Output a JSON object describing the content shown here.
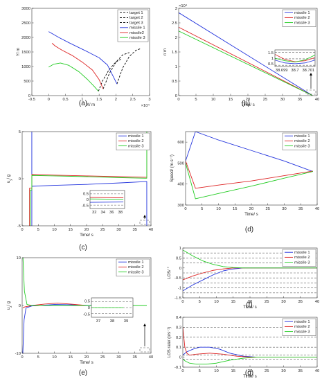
{
  "colors": {
    "missile_1": "#2233dd",
    "missile_2": "#dd2222",
    "missile_3": "#22cc22",
    "target": "#000000"
  },
  "captions": {
    "a": "(a)",
    "b": "(b)",
    "c": "(c)",
    "d": "(d)",
    "e": "(e)",
    "f": "(f)",
    "g": "(g)"
  },
  "chart_data": [
    {
      "id": "a",
      "type": "line",
      "xlabel": "X/ m",
      "ylabel": "Y/ m",
      "x_exponent": "×10⁴",
      "xlim": [
        -0.5,
        3
      ],
      "ylim": [
        0,
        3000
      ],
      "xticks": [
        -0.5,
        0,
        0.5,
        1,
        1.5,
        2,
        2.5,
        3
      ],
      "xtick_labels": [
        "-0.5",
        "0",
        "0.5",
        "1",
        "1.5",
        "2",
        "2.5",
        "3"
      ],
      "yticks": [
        0,
        500,
        1000,
        1500,
        2000,
        2500,
        3000
      ],
      "ytick_labels": [
        "0",
        "500",
        "1000",
        "1500",
        "2000",
        "2500",
        "3000"
      ],
      "legend": [
        "target 1",
        "target 2",
        "target 3",
        "missile 1",
        "missile2",
        "missile 3"
      ],
      "series": [
        {
          "name": "target 1",
          "style": "dash",
          "color_key": "target",
          "x": [
            2.03,
            2.2,
            2.4,
            2.6,
            2.75
          ],
          "y": [
            400,
            950,
            1350,
            1560,
            1620
          ]
        },
        {
          "name": "target 2",
          "style": "dash",
          "color_key": "target",
          "x": [
            1.62,
            1.8,
            2.0,
            2.2,
            2.4
          ],
          "y": [
            230,
            750,
            1150,
            1400,
            1480
          ]
        },
        {
          "name": "target 3",
          "style": "dash",
          "color_key": "target",
          "x": [
            1.48,
            1.6,
            1.8,
            2.0,
            2.15
          ],
          "y": [
            150,
            500,
            900,
            1160,
            1250
          ]
        },
        {
          "name": "missile 1",
          "style": "solid",
          "color_key": "missile_1",
          "x": [
            0,
            0.3,
            0.6,
            0.9,
            1.2,
            1.5,
            1.75,
            1.9,
            2.03
          ],
          "y": [
            2200,
            2000,
            1820,
            1650,
            1480,
            1300,
            1050,
            700,
            400
          ]
        },
        {
          "name": "missile2",
          "style": "solid",
          "color_key": "missile_2",
          "x": [
            0.1,
            0.2,
            0.4,
            0.7,
            1.0,
            1.3,
            1.5,
            1.62
          ],
          "y": [
            1800,
            1700,
            1560,
            1380,
            1150,
            880,
            550,
            230
          ]
        },
        {
          "name": "missile 3",
          "style": "solid",
          "color_key": "missile_3",
          "x": [
            0,
            0.15,
            0.35,
            0.6,
            0.9,
            1.15,
            1.35,
            1.48
          ],
          "y": [
            980,
            1080,
            1120,
            1040,
            820,
            560,
            320,
            150
          ]
        }
      ]
    },
    {
      "id": "b",
      "type": "line",
      "xlabel": "Time/ s",
      "ylabel": "r/ m",
      "y_exponent": "×10⁴",
      "xlim": [
        0,
        40
      ],
      "ylim": [
        0,
        3
      ],
      "xticks": [
        0,
        5,
        10,
        15,
        20,
        25,
        30,
        35,
        40
      ],
      "xtick_labels": [
        "0",
        "5",
        "10",
        "15",
        "20",
        "25",
        "30",
        "35",
        "40"
      ],
      "yticks": [
        0,
        0.5,
        1,
        1.5,
        2,
        2.5,
        3
      ],
      "ytick_labels": [
        "0",
        "0.5",
        "1",
        "1.5",
        "2",
        "2.5",
        "3"
      ],
      "legend": [
        "missile 1",
        "missile 2",
        "missile 3"
      ],
      "series": [
        {
          "name": "missile 1",
          "color_key": "missile_1",
          "x": [
            0,
            38.7
          ],
          "y": [
            2.85,
            0
          ]
        },
        {
          "name": "missile 2",
          "color_key": "missile_2",
          "x": [
            0,
            38.7
          ],
          "y": [
            2.35,
            0
          ]
        },
        {
          "name": "missile 3",
          "color_key": "missile_3",
          "x": [
            0,
            38.7
          ],
          "y": [
            2.22,
            0
          ]
        }
      ],
      "inset": {
        "xtick_labels": [
          "38.699",
          "38.7",
          "38.701"
        ],
        "ytick_labels": [
          "1.5",
          "1",
          "0.5"
        ],
        "xlim": [
          38.699,
          38.701
        ],
        "ylim": [
          0.4,
          1.7
        ],
        "thresholds": [
          1.5,
          1.0,
          0.5
        ],
        "series": [
          {
            "name": "missile 1",
            "color_key": "missile_1",
            "x": [
              38.699,
              38.6995,
              38.7,
              38.7005,
              38.701
            ],
            "y": [
              0.9,
              0.68,
              0.62,
              0.68,
              0.9
            ]
          },
          {
            "name": "missile 2",
            "color_key": "missile_2",
            "x": [
              38.699,
              38.6995,
              38.7,
              38.7005,
              38.701
            ],
            "y": [
              1.35,
              0.95,
              0.78,
              0.85,
              1.1
            ]
          },
          {
            "name": "missile 3",
            "color_key": "missile_3",
            "x": [
              38.699,
              38.6995,
              38.7,
              38.7005,
              38.701
            ],
            "y": [
              1.05,
              0.85,
              0.75,
              0.92,
              1.3
            ]
          }
        ]
      }
    },
    {
      "id": "c",
      "type": "line",
      "xlabel": "Time/ s",
      "ylabel": "u_y/ g",
      "xlim": [
        0,
        40
      ],
      "ylim": [
        -5,
        5
      ],
      "xticks": [
        0,
        5,
        10,
        15,
        20,
        25,
        30,
        35,
        40
      ],
      "xtick_labels": [
        "0",
        "5",
        "10",
        "15",
        "20",
        "25",
        "30",
        "35",
        "40"
      ],
      "yticks": [
        -5,
        0,
        5
      ],
      "ytick_labels": [
        "-5",
        "0",
        "5"
      ],
      "legend": [
        "missile 1",
        "missile 2",
        "missile 3"
      ],
      "series": [
        {
          "name": "missile 1",
          "color_key": "missile_1",
          "x": [
            3.0,
            3.0,
            3.01,
            10,
            20,
            30,
            38.7,
            38.7
          ],
          "y": [
            5,
            -5,
            -0.8,
            -0.7,
            -0.6,
            -0.45,
            -0.3,
            -5
          ]
        },
        {
          "name": "missile 2",
          "color_key": "missile_2",
          "x": [
            2.3,
            2.3,
            3.0,
            3.01,
            10,
            20,
            30,
            38.7,
            38.7
          ],
          "y": [
            -5,
            -1.0,
            -1.0,
            0.45,
            0.38,
            0.3,
            0.22,
            0.15,
            5
          ]
        },
        {
          "name": "missile 3",
          "color_key": "missile_3",
          "x": [
            2.5,
            2.5,
            3.0,
            3.01,
            10,
            20,
            30,
            38.7,
            38.7
          ],
          "y": [
            -5,
            -1.2,
            -1.2,
            0.35,
            0.3,
            0.22,
            0.12,
            0.05,
            5
          ]
        }
      ],
      "inset": {
        "xtick_labels": [
          "32",
          "34",
          "36",
          "38"
        ],
        "ytick_labels": [
          "0.5",
          "0",
          "-0.5"
        ],
        "xlim": [
          31,
          39
        ],
        "ylim": [
          -0.8,
          0.8
        ],
        "thresholds": [
          0.5,
          -0.5
        ],
        "series": [
          {
            "name": "missile 1",
            "color_key": "missile_1",
            "x": [
              31,
              38.7
            ],
            "y": [
              -0.25,
              -0.22
            ]
          },
          {
            "name": "missile 2",
            "color_key": "missile_2",
            "x": [
              31,
              38.7
            ],
            "y": [
              0.18,
              0.15
            ]
          },
          {
            "name": "missile 3",
            "color_key": "missile_3",
            "x": [
              31,
              38.7
            ],
            "y": [
              0.05,
              0.02
            ]
          }
        ]
      }
    },
    {
      "id": "d",
      "type": "line",
      "xlabel": "Time/ s",
      "ylabel": "Speed/ (m·s⁻¹)",
      "xlim": [
        0,
        40
      ],
      "ylim": [
        300,
        650
      ],
      "xticks": [
        0,
        5,
        10,
        15,
        20,
        25,
        30,
        35,
        40
      ],
      "xtick_labels": [
        "0",
        "5",
        "10",
        "15",
        "20",
        "25",
        "30",
        "35",
        "40"
      ],
      "yticks": [
        300,
        400,
        500,
        600
      ],
      "ytick_labels": [
        "300",
        "400",
        "500",
        "600"
      ],
      "legend": [
        "missile 1",
        "missile 2",
        "missile 3"
      ],
      "series": [
        {
          "name": "missile 1",
          "color_key": "missile_1",
          "x": [
            0,
            3,
            10,
            20,
            30,
            38.7
          ],
          "y": [
            510,
            650,
            610,
            560,
            510,
            460
          ]
        },
        {
          "name": "missile 2",
          "color_key": "missile_2",
          "x": [
            0,
            3,
            10,
            20,
            30,
            38.7
          ],
          "y": [
            510,
            380,
            395,
            415,
            440,
            462
          ]
        },
        {
          "name": "missile 3",
          "color_key": "missile_3",
          "x": [
            0,
            3,
            10,
            20,
            30,
            38.7
          ],
          "y": [
            500,
            330,
            355,
            390,
            428,
            460
          ]
        }
      ]
    },
    {
      "id": "e",
      "type": "line",
      "xlabel": "Time/ s",
      "ylabel": "u_z/ g",
      "xlim": [
        0,
        40
      ],
      "ylim": [
        -10,
        10
      ],
      "xticks": [
        0,
        5,
        10,
        15,
        20,
        25,
        30,
        35,
        40
      ],
      "xtick_labels": [
        "0",
        "5",
        "10",
        "15",
        "20",
        "25",
        "30",
        "35",
        "40"
      ],
      "yticks": [
        -10,
        0,
        10
      ],
      "ytick_labels": [
        "-10",
        "0",
        "10"
      ],
      "legend": [
        "missile 1",
        "missile 2",
        "missile 3"
      ],
      "series": [
        {
          "name": "missile 1",
          "color_key": "missile_1",
          "x": [
            0.2,
            0.2,
            0.6,
            1.2,
            3,
            10,
            15,
            20,
            25,
            30,
            38.7
          ],
          "y": [
            -10,
            -10,
            -3,
            -0.5,
            -0.1,
            0.2,
            0.15,
            0.05,
            0,
            0,
            0
          ]
        },
        {
          "name": "missile 2",
          "color_key": "missile_2",
          "x": [
            0.2,
            0.8,
            1.5,
            3,
            7,
            11,
            15,
            20,
            25,
            38.7
          ],
          "y": [
            -0.5,
            -0.3,
            -0.2,
            0,
            0.3,
            0.5,
            0.3,
            0,
            0,
            0
          ]
        },
        {
          "name": "missile 3",
          "color_key": "missile_3",
          "x": [
            0.25,
            0.25,
            0.7,
            1.5,
            3,
            10,
            20,
            38.7
          ],
          "y": [
            10,
            10,
            3,
            0.2,
            0,
            0,
            0,
            0
          ]
        }
      ],
      "inset": {
        "xtick_labels": [
          "37",
          "38",
          "39"
        ],
        "ytick_labels": [
          "0.5",
          "0",
          "-0.5"
        ],
        "xlim": [
          36,
          39.5
        ],
        "ylim": [
          -0.8,
          0.8
        ],
        "thresholds": [
          0.5,
          0,
          -0.5
        ],
        "series": [
          {
            "name": "missile 3",
            "color_key": "missile_3",
            "x": [
              36,
              38.7
            ],
            "y": [
              0,
              0
            ]
          }
        ]
      }
    },
    {
      "id": "f",
      "type": "line",
      "xlabel": "Time/ s",
      "ylabel": "LOS/ °",
      "xlim": [
        0,
        40
      ],
      "ylim": [
        -1.5,
        1
      ],
      "xticks": [
        0,
        5,
        10,
        15,
        20,
        25,
        30,
        35,
        40
      ],
      "xtick_labels": [
        "0",
        "5",
        "10",
        "15",
        "20",
        "25",
        "30",
        "35",
        "40"
      ],
      "yticks": [
        -1.5,
        -1,
        -0.5,
        0,
        0.5,
        1
      ],
      "ytick_labels": [
        "-1.5",
        "-1",
        "-0.5",
        "0",
        "0.5",
        "1"
      ],
      "thresholds": [
        0.75,
        0.5,
        0.25,
        -0.25,
        -0.5,
        -0.75,
        -1.0,
        -1.25
      ],
      "legend": [
        "missile 1",
        "missile 2",
        "missile 3"
      ],
      "series": [
        {
          "name": "missile 1",
          "color_key": "missile_1",
          "x": [
            0,
            3,
            6,
            9,
            12,
            15,
            18,
            40
          ],
          "y": [
            -1.15,
            -0.85,
            -0.6,
            -0.35,
            -0.15,
            -0.05,
            0,
            0
          ]
        },
        {
          "name": "missile 2",
          "color_key": "missile_2",
          "x": [
            0,
            3,
            6,
            9,
            12,
            15,
            18,
            40
          ],
          "y": [
            -0.6,
            -0.4,
            -0.25,
            -0.12,
            -0.05,
            0,
            0,
            0
          ]
        },
        {
          "name": "missile 3",
          "color_key": "missile_3",
          "x": [
            0,
            3,
            6,
            9,
            12,
            15,
            18,
            40
          ],
          "y": [
            0.9,
            0.6,
            0.35,
            0.18,
            0.07,
            0.02,
            0,
            0
          ]
        }
      ]
    },
    {
      "id": "g",
      "type": "line",
      "xlabel": "Time/ s",
      "ylabel": "LOS rate/ (o/s⁻¹)",
      "xlim": [
        0,
        40
      ],
      "ylim": [
        -0.1,
        0.4
      ],
      "xticks": [
        0,
        5,
        10,
        15,
        20,
        25,
        30,
        35,
        40
      ],
      "xtick_labels": [
        "0",
        "5",
        "10",
        "15",
        "20",
        "25",
        "30",
        "35",
        "40"
      ],
      "yticks": [
        -0.1,
        0,
        0.1,
        0.2,
        0.3,
        0.4
      ],
      "ytick_labels": [
        "-0.1",
        "0",
        "0.1",
        "0.2",
        "0.3",
        "0.4"
      ],
      "thresholds": [
        0.3,
        0.2,
        0.1,
        0.02,
        -0.02
      ],
      "legend": [
        "missile 1",
        "missile 2",
        "missile 3"
      ],
      "series": [
        {
          "name": "missile 1",
          "color_key": "missile_1",
          "x": [
            0,
            1,
            3,
            5,
            8,
            11,
            14,
            18,
            22,
            40
          ],
          "y": [
            0.02,
            0.05,
            0.08,
            0.1,
            0.1,
            0.08,
            0.04,
            0.01,
            0,
            0
          ]
        },
        {
          "name": "missile 2",
          "color_key": "missile_2",
          "x": [
            0,
            0.6,
            1.2,
            2,
            4,
            8,
            12,
            16,
            20,
            40
          ],
          "y": [
            0.3,
            0.1,
            0.04,
            0.02,
            0.03,
            0.04,
            0.03,
            0.01,
            0,
            0
          ]
        },
        {
          "name": "missile 3",
          "color_key": "missile_3",
          "x": [
            0,
            0.8,
            2,
            4,
            7,
            10,
            14,
            18,
            22,
            40
          ],
          "y": [
            -0.02,
            -0.04,
            -0.06,
            -0.07,
            -0.07,
            -0.06,
            -0.03,
            -0.01,
            0,
            0
          ]
        }
      ]
    }
  ]
}
